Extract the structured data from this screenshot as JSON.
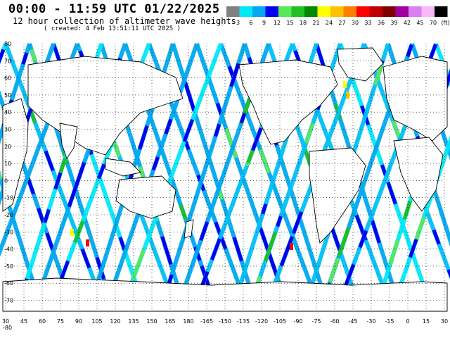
{
  "header": {
    "title": "00:00 - 11:59 UTC 01/22/2025",
    "subtitle": "12 hour collection of altimeter wave heights",
    "created": "( created:  4 Feb 13:51:11 UTC 2025 )"
  },
  "legend": {
    "unit": "(ft)",
    "bins": [
      {
        "label": "3",
        "color": "#808080"
      },
      {
        "label": "6",
        "color": "#00e8f8"
      },
      {
        "label": "9",
        "color": "#00a8f0"
      },
      {
        "label": "12",
        "color": "#0000f0"
      },
      {
        "label": "15",
        "color": "#58e858"
      },
      {
        "label": "18",
        "color": "#20c020"
      },
      {
        "label": "21",
        "color": "#008800"
      },
      {
        "label": "24",
        "color": "#ffff00"
      },
      {
        "label": "27",
        "color": "#ffc000"
      },
      {
        "label": "30",
        "color": "#ff8000"
      },
      {
        "label": "33",
        "color": "#ff0000"
      },
      {
        "label": "36",
        "color": "#c00000"
      },
      {
        "label": "39",
        "color": "#800000"
      },
      {
        "label": "42",
        "color": "#a000a0"
      },
      {
        "label": "45",
        "color": "#d880f0"
      },
      {
        "label": "70",
        "color": "#f8b8f8"
      },
      {
        "label": "",
        "color": "#000000"
      }
    ]
  },
  "map": {
    "lat_labels": [
      "80",
      "70",
      "60",
      "50",
      "40",
      "30",
      "20",
      "10",
      "0",
      "-10",
      "-20",
      "-30",
      "-40",
      "-50",
      "-60",
      "-70",
      "-80"
    ],
    "lon_labels": [
      "30",
      "45",
      "60",
      "75",
      "90",
      "105",
      "120",
      "135",
      "150",
      "165",
      "180",
      "-165",
      "-150",
      "-135",
      "-120",
      "-105",
      "-90",
      "-75",
      "-60",
      "-45",
      "-30",
      "-15",
      "0",
      "15",
      "30"
    ]
  }
}
